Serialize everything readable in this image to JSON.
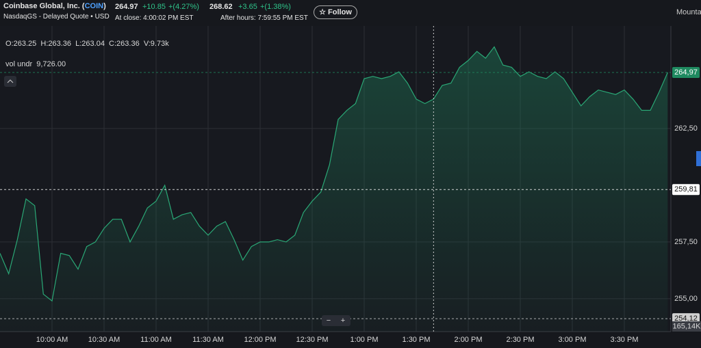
{
  "header": {
    "company": "Coinbase Global, Inc.",
    "ticker": "COIN",
    "exchange": "NasdaqGS - Delayed Quote • USD",
    "price": "264.97",
    "change": "+10.85",
    "change_pct": "+(4.27%)",
    "close_time": "At close: 4:00:02 PM EST",
    "ah_price": "268.62",
    "ah_change": "+3.65",
    "ah_change_pct": "+(1.38%)",
    "ah_time": "After hours: 7:59:55 PM EST",
    "follow": "Follow",
    "side_tab": "Mounta"
  },
  "chart_data": {
    "type": "line",
    "ohlc": "O:263.25  H:263.36  L:263.04  C:263.36  V:9.73k",
    "study": "vol undr  9,726.00",
    "volume_label": "165,14K",
    "x": [
      "09:30",
      "09:35",
      "09:40",
      "09:45",
      "09:50",
      "09:55",
      "10:00",
      "10:05",
      "10:10",
      "10:15",
      "10:20",
      "10:25",
      "10:30",
      "10:35",
      "10:40",
      "10:45",
      "10:50",
      "10:55",
      "11:00",
      "11:05",
      "11:10",
      "11:15",
      "11:20",
      "11:25",
      "11:30",
      "11:35",
      "11:40",
      "11:45",
      "11:50",
      "11:55",
      "12:00",
      "12:05",
      "12:10",
      "12:15",
      "12:20",
      "12:25",
      "12:30",
      "12:35",
      "12:40",
      "12:45",
      "12:50",
      "12:55",
      "13:00",
      "13:05",
      "13:10",
      "13:15",
      "13:20",
      "13:25",
      "13:30",
      "13:35",
      "13:40",
      "13:45",
      "13:50",
      "13:55",
      "14:00",
      "14:05",
      "14:10",
      "14:15",
      "14:20",
      "14:25",
      "14:30",
      "14:35",
      "14:40",
      "14:45",
      "14:50",
      "14:55",
      "15:00",
      "15:05",
      "15:10",
      "15:15",
      "15:20",
      "15:25",
      "15:30",
      "15:35",
      "15:40",
      "15:45",
      "15:50",
      "15:55"
    ],
    "series": [
      {
        "name": "COIN",
        "color": "#2aa876",
        "values": [
          257.0,
          256.1,
          257.6,
          259.4,
          259.1,
          255.2,
          254.9,
          257.0,
          256.9,
          256.3,
          257.3,
          257.5,
          258.1,
          258.5,
          258.5,
          257.5,
          258.2,
          259.0,
          259.3,
          260.0,
          258.5,
          258.7,
          258.8,
          258.2,
          257.8,
          258.2,
          258.4,
          257.6,
          256.7,
          257.3,
          257.5,
          257.5,
          257.6,
          257.5,
          257.8,
          258.8,
          259.3,
          259.7,
          260.9,
          262.9,
          263.3,
          263.6,
          264.7,
          264.8,
          264.7,
          264.8,
          265.0,
          264.5,
          263.8,
          263.6,
          263.8,
          264.4,
          264.5,
          265.2,
          265.5,
          265.9,
          265.6,
          266.1,
          265.3,
          265.2,
          264.8,
          265.0,
          264.8,
          264.7,
          265.0,
          264.7,
          264.1,
          263.5,
          263.9,
          264.2,
          264.1,
          264.0,
          264.2,
          263.8,
          263.3,
          263.3,
          264.1,
          264.97
        ]
      }
    ],
    "ylim": [
      253.55,
      267.02
    ],
    "yticks": [
      {
        "value": 262.5,
        "label": "262,50"
      },
      {
        "value": 257.5,
        "label": "257,50"
      },
      {
        "value": 255,
        "label": "255,00"
      }
    ],
    "xlim": [
      "09:30",
      "16:00"
    ],
    "xticks": [
      {
        "value": "10:00",
        "label": "10:00 AM"
      },
      {
        "value": "10:30",
        "label": "10:30 AM"
      },
      {
        "value": "11:00",
        "label": "11:00 AM"
      },
      {
        "value": "11:30",
        "label": "11:30 AM"
      },
      {
        "value": "12:00",
        "label": "12:00 PM"
      },
      {
        "value": "12:30",
        "label": "12:30 PM"
      },
      {
        "value": "13:00",
        "label": "1:00 PM"
      },
      {
        "value": "13:30",
        "label": "1:30 PM"
      },
      {
        "value": "14:00",
        "label": "2:00 PM"
      },
      {
        "value": "14:30",
        "label": "2:30 PM"
      },
      {
        "value": "15:00",
        "label": "3:00 PM"
      },
      {
        "value": "15:30",
        "label": "3:30 PM"
      }
    ],
    "price_lines": [
      {
        "value": 264.97,
        "label": "264,97",
        "color": "#1f8a60"
      },
      {
        "value": 259.81,
        "label": "259,81",
        "color": "#ffffff"
      },
      {
        "value": 254.12,
        "label": "254,12",
        "color": "#d0d0d0"
      }
    ],
    "crosshair_x": "13:40",
    "grid": true
  }
}
